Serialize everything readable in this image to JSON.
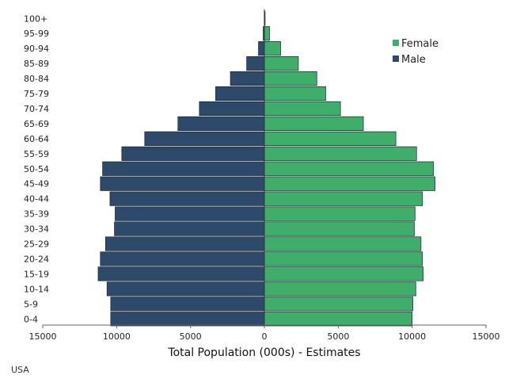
{
  "chart_data": {
    "type": "bar",
    "orientation": "horizontal",
    "layout": "population-pyramid",
    "categories": [
      "0-4",
      "5-9",
      "10-14",
      "15-19",
      "20-24",
      "25-29",
      "30-34",
      "35-39",
      "40-44",
      "45-49",
      "50-54",
      "55-59",
      "60-64",
      "65-69",
      "70-74",
      "75-79",
      "80-84",
      "85-89",
      "90-94",
      "95-99",
      "100+"
    ],
    "series": [
      {
        "name": "Male",
        "side": "left",
        "color": "#2e4a6b",
        "values": [
          10400,
          10400,
          10650,
          11250,
          11100,
          10750,
          10150,
          10100,
          10450,
          11100,
          10950,
          9650,
          8100,
          5850,
          4400,
          3300,
          2300,
          1200,
          400,
          80,
          10
        ]
      },
      {
        "name": "Female",
        "side": "right",
        "color": "#3fae6a",
        "values": [
          10000,
          10050,
          10250,
          10750,
          10700,
          10600,
          10150,
          10200,
          10700,
          11550,
          11450,
          10300,
          8900,
          6700,
          5150,
          4150,
          3550,
          2300,
          1100,
          350,
          50
        ]
      }
    ],
    "xlabel": "Total Population (000s) - Estimates",
    "x_ticks": [
      "15000",
      "10000",
      "5000",
      "0",
      "5000",
      "10000",
      "15000"
    ],
    "xlim": [
      -15000,
      15000
    ],
    "legend": {
      "position": "top-right",
      "entries": [
        "Female",
        "Male"
      ]
    },
    "grid": false
  },
  "footnote": "USA"
}
